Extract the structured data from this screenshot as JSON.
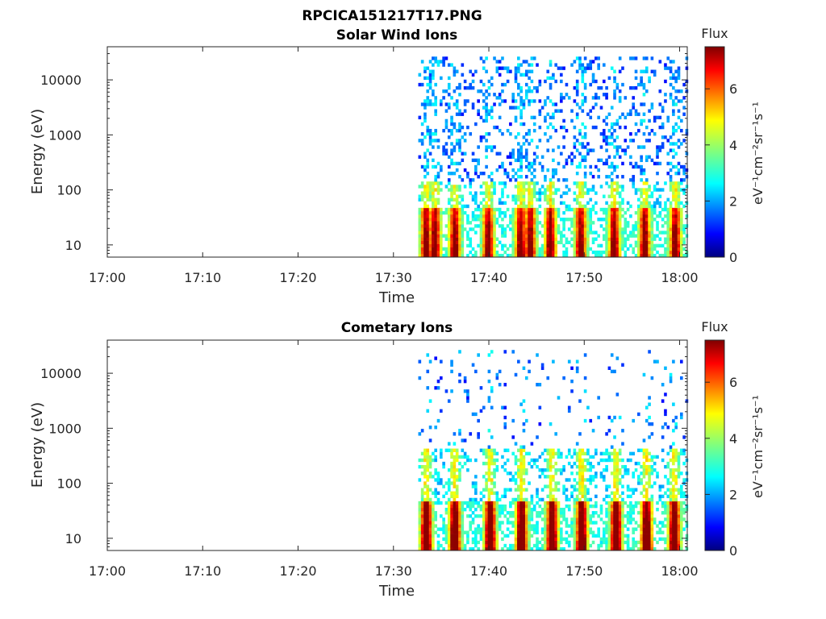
{
  "figure": {
    "filename_title": "RPCICA151217T17.PNG"
  },
  "chart_data": [
    {
      "type": "heatmap",
      "title": "Solar Wind Ions",
      "xlabel": "Time",
      "ylabel": "Energy (eV)",
      "x_tick_labels": [
        "17:00",
        "17:10",
        "17:20",
        "17:30",
        "17:40",
        "17:50",
        "18:00"
      ],
      "x_ticks_minutes": [
        0,
        10,
        20,
        30,
        40,
        50,
        60
      ],
      "xlim_minutes": [
        0,
        60.8
      ],
      "y_scale": "log",
      "y_tick_labels": [
        "10",
        "100",
        "1000",
        "10000"
      ],
      "y_ticks": [
        10,
        100,
        1000,
        10000
      ],
      "ylim": [
        6,
        40000
      ],
      "data_start_minute": 32.6,
      "colorbar": {
        "label_top": "Flux",
        "label_side": "eV⁻¹cm⁻²sr⁻¹s⁻¹",
        "range": [
          0,
          7.5
        ],
        "ticks": [
          0,
          2,
          4,
          6
        ]
      },
      "intense_bursts_minutes": [
        33.3,
        34.2,
        36.3,
        39.8,
        43.2,
        44.2,
        46.3,
        49.5,
        53.0,
        56.2,
        59.4
      ],
      "features": {
        "low_energy_band_eV": [
          6,
          45
        ],
        "sparse_high_energy_scatter_eV": [
          150,
          25000
        ],
        "sparse_fraction": 0.32,
        "burst_intensity": 5.5
      }
    },
    {
      "type": "heatmap",
      "title": "Cometary Ions",
      "xlabel": "Time",
      "ylabel": "Energy (eV)",
      "x_tick_labels": [
        "17:00",
        "17:10",
        "17:20",
        "17:30",
        "17:40",
        "17:50",
        "18:00"
      ],
      "x_ticks_minutes": [
        0,
        10,
        20,
        30,
        40,
        50,
        60
      ],
      "xlim_minutes": [
        0,
        60.8
      ],
      "y_scale": "log",
      "y_tick_labels": [
        "10",
        "100",
        "1000",
        "10000"
      ],
      "y_ticks": [
        10,
        100,
        1000,
        10000
      ],
      "ylim": [
        6,
        40000
      ],
      "data_start_minute": 32.6,
      "colorbar": {
        "label_top": "Flux",
        "label_side": "eV⁻¹cm⁻²sr⁻¹s⁻¹",
        "range": [
          0,
          7.5
        ],
        "ticks": [
          0,
          2,
          4,
          6
        ]
      },
      "intense_bursts_minutes": [
        33.3,
        36.3,
        40.0,
        43.3,
        46.5,
        49.6,
        53.2,
        56.4,
        59.3
      ],
      "features": {
        "low_energy_band_eV": [
          6,
          45
        ],
        "sparse_high_energy_scatter_eV": [
          400,
          25000
        ],
        "sparse_fraction": 0.08,
        "burst_intensity": 6.8
      }
    }
  ]
}
